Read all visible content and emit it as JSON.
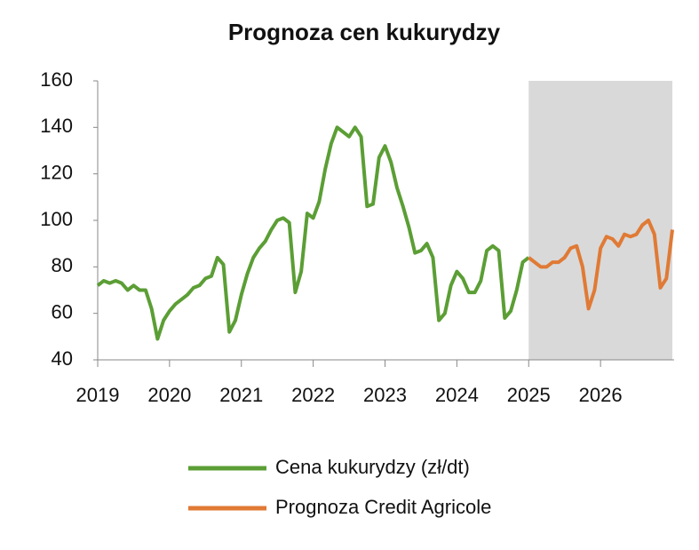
{
  "chart_data": {
    "type": "line",
    "title": "Prognoza cen kukurydzy",
    "xlim": [
      2019,
      2027
    ],
    "xticks": [
      2019,
      2020,
      2021,
      2022,
      2023,
      2024,
      2025,
      2026
    ],
    "ylim": [
      40,
      160
    ],
    "yticks": [
      40,
      60,
      80,
      100,
      120,
      140,
      160
    ],
    "grid": false,
    "shaded_region": [
      2025,
      2027
    ],
    "shade_color": "#d9d9d9",
    "legend": "bottom",
    "series": [
      {
        "name": "Cena kukurydzy (zł/dt)",
        "color": "#5b9e35",
        "x": [
          2019,
          2019.083,
          2019.167,
          2019.25,
          2019.333,
          2019.417,
          2019.5,
          2019.583,
          2019.667,
          2019.75,
          2019.833,
          2019.917,
          2020,
          2020.083,
          2020.167,
          2020.25,
          2020.333,
          2020.417,
          2020.5,
          2020.583,
          2020.667,
          2020.75,
          2020.833,
          2020.917,
          2021,
          2021.083,
          2021.167,
          2021.25,
          2021.333,
          2021.417,
          2021.5,
          2021.583,
          2021.667,
          2021.75,
          2021.833,
          2021.917,
          2022,
          2022.083,
          2022.167,
          2022.25,
          2022.333,
          2022.417,
          2022.5,
          2022.583,
          2022.667,
          2022.75,
          2022.833,
          2022.917,
          2023,
          2023.083,
          2023.167,
          2023.25,
          2023.333,
          2023.417,
          2023.5,
          2023.583,
          2023.667,
          2023.75,
          2023.833,
          2023.917,
          2024,
          2024.083,
          2024.167,
          2024.25,
          2024.333,
          2024.417,
          2024.5,
          2024.583,
          2024.667,
          2024.75,
          2024.833,
          2024.917,
          2025
        ],
        "values": [
          72,
          74,
          73,
          74,
          73,
          70,
          72,
          70,
          70,
          62,
          49,
          57,
          61,
          64,
          66,
          68,
          71,
          72,
          75,
          76,
          84,
          81,
          52,
          57,
          68,
          77,
          84,
          88,
          91,
          96,
          100,
          101,
          99,
          69,
          78,
          103,
          101,
          108,
          122,
          133,
          140,
          138,
          136,
          140,
          136,
          106,
          107,
          127,
          132,
          125,
          114,
          106,
          97,
          86,
          87,
          90,
          84,
          57,
          60,
          72,
          78,
          75,
          69,
          69,
          74,
          87,
          89,
          87,
          58,
          61,
          70,
          82,
          84
        ]
      },
      {
        "name": "Prognoza Credit Agricole",
        "color": "#e07a35",
        "x": [
          2025,
          2025.083,
          2025.167,
          2025.25,
          2025.333,
          2025.417,
          2025.5,
          2025.583,
          2025.667,
          2025.75,
          2025.833,
          2025.917,
          2026,
          2026.083,
          2026.167,
          2026.25,
          2026.333,
          2026.417,
          2026.5,
          2026.583,
          2026.667,
          2026.75,
          2026.833,
          2026.917,
          2027
        ],
        "values": [
          84,
          82,
          80,
          80,
          82,
          82,
          84,
          88,
          89,
          80,
          62,
          70,
          88,
          93,
          92,
          89,
          94,
          93,
          94,
          98,
          100,
          94,
          71,
          75,
          96
        ]
      }
    ]
  }
}
